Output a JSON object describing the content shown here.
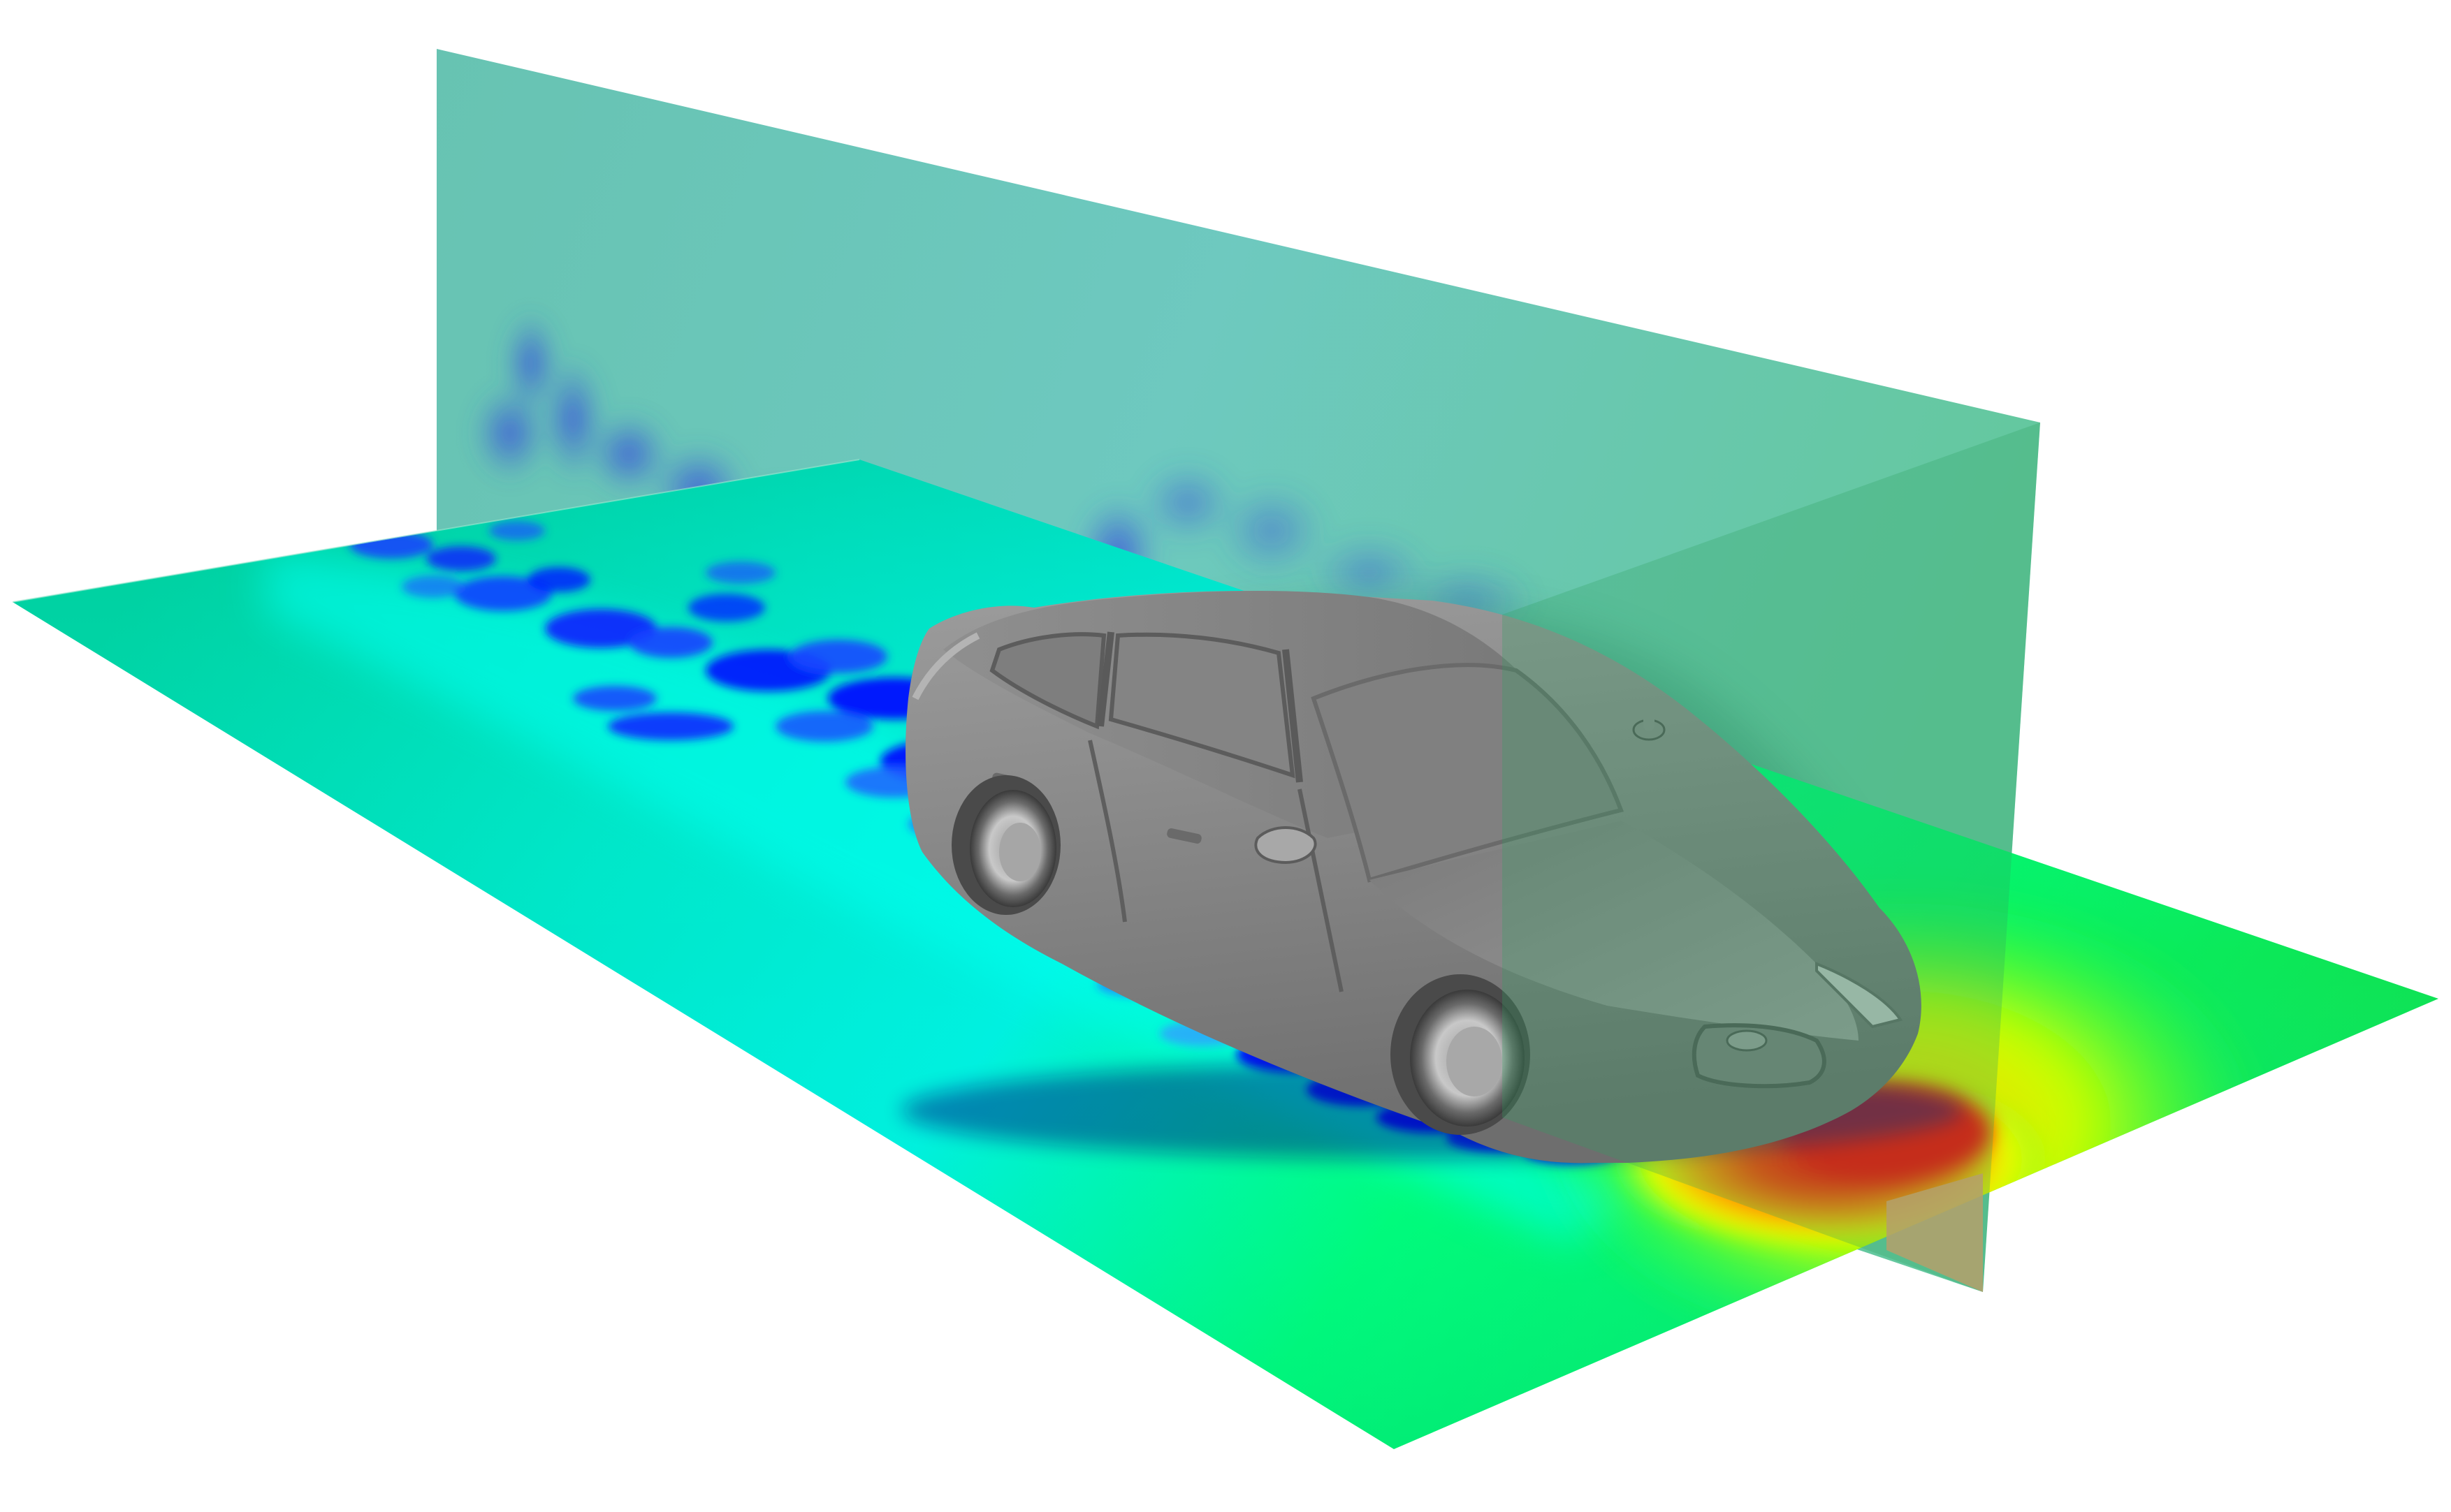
{
  "scene": {
    "kind": "cfd-flow-visualization",
    "subject": "sedan",
    "slices": [
      "ground-plane",
      "vertical-center-plane"
    ],
    "colormap": [
      "#0000ff",
      "#00ffff",
      "#00ff00",
      "#ffff00",
      "#ff0000"
    ],
    "free_stream_color": "#00e08a",
    "vertical_plane_tint": "#66c2b4",
    "wake_color": "#1030ff",
    "stagnation_color": "#ff1a00",
    "car_body_color": "#8e8e8e",
    "background": "#ffffff"
  }
}
